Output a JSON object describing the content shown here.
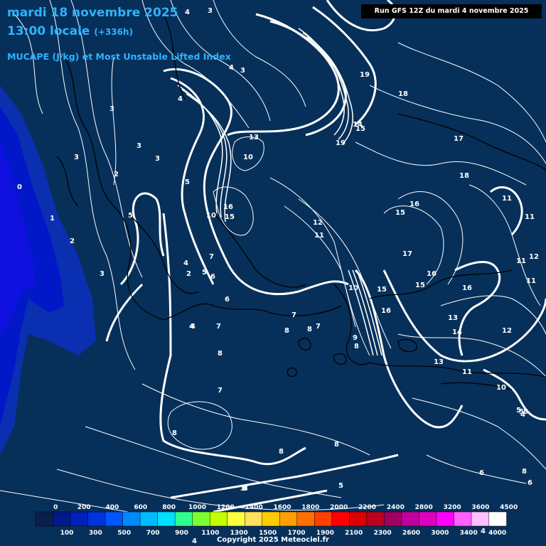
{
  "header": {
    "date": "mardi 18 novembre 2025",
    "time": "13:00 locale",
    "lead": "(+336h)",
    "parameter": "MUCAPE (J/kg) et Most Unstable Lifted Index"
  },
  "run_info": "Run GFS 12Z du mardi 4 novembre 2025",
  "copyright": "Copyright 2025 Meteociel.fr",
  "colors": {
    "background": "#06305a",
    "title": "#2fb3ff",
    "isolines": "#ffffff"
  },
  "legend": {
    "upper_ticks": [
      "0",
      "200",
      "400",
      "600",
      "800",
      "1000",
      "1200",
      "1400",
      "1600",
      "1800",
      "2000",
      "2200",
      "2400",
      "2800",
      "3200",
      "3600",
      "4500"
    ],
    "lower_ticks": [
      "100",
      "300",
      "500",
      "700",
      "900",
      "1100",
      "1300",
      "1500",
      "1700",
      "1900",
      "2100",
      "2300",
      "2600",
      "3000",
      "3400",
      "4000"
    ],
    "colors": [
      "#0a1f50",
      "#001a8c",
      "#0022b8",
      "#0033dd",
      "#0055ff",
      "#0088ff",
      "#00bbff",
      "#00e0ff",
      "#30ff90",
      "#7cff30",
      "#c4ff00",
      "#ffff40",
      "#ffe060",
      "#ffcc00",
      "#ffa000",
      "#ff7000",
      "#ff4000",
      "#ff0000",
      "#dd0000",
      "#bb0020",
      "#a00060",
      "#c000a0",
      "#e000c0",
      "#ff00ff",
      "#ff60ff",
      "#ffc0ff",
      "#ffffff"
    ]
  },
  "lifted_index_labels": [
    "4",
    "3",
    "4",
    "3",
    "4",
    "3",
    "3",
    "3",
    "3",
    "2",
    "0",
    "1",
    "2",
    "5",
    "5",
    "3",
    "2",
    "4",
    "6",
    "4",
    "10",
    "13",
    "16",
    "15",
    "10",
    "12",
    "11",
    "19",
    "18",
    "17",
    "19",
    "14",
    "15",
    "18",
    "16",
    "15",
    "17",
    "16",
    "15",
    "16",
    "13",
    "14",
    "12",
    "11",
    "11",
    "11",
    "12",
    "11",
    "13",
    "11",
    "4",
    "7",
    "5",
    "6",
    "5",
    "3",
    "6",
    "4",
    "8",
    "7",
    "7",
    "8",
    "9",
    "8",
    "8",
    "7",
    "10",
    "15",
    "16",
    "8",
    "7",
    "8",
    "8",
    "8",
    "6",
    "8",
    "8",
    "3",
    "5",
    "4",
    "4",
    "10",
    "5"
  ]
}
